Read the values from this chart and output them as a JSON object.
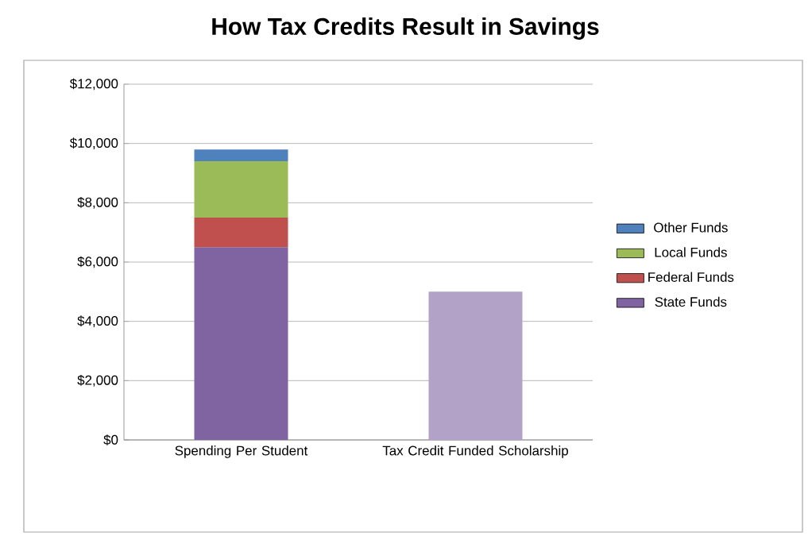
{
  "chart_data": {
    "type": "bar",
    "stacked": true,
    "title": "How Tax Credits Result in Savings",
    "categories": [
      "Spending Per Student",
      "Tax Credit Funded Scholarship"
    ],
    "series": [
      {
        "name": "State Funds",
        "color": "#8064a2",
        "values": [
          6500,
          null
        ]
      },
      {
        "name": "Federal Funds",
        "color": "#c0504d",
        "values": [
          1000,
          null
        ]
      },
      {
        "name": "Local Funds",
        "color": "#9bbb59",
        "values": [
          1900,
          null
        ]
      },
      {
        "name": "Other Funds",
        "color": "#4f81bd",
        "values": [
          400,
          null
        ]
      },
      {
        "color": "#b3a2c7",
        "values": [
          null,
          5000
        ]
      }
    ],
    "ylim": [
      0,
      12000
    ],
    "yticks": [
      {
        "value": 0,
        "label": "$0"
      },
      {
        "value": 2000,
        "label": "$2,000"
      },
      {
        "value": 4000,
        "label": "$4,000"
      },
      {
        "value": 6000,
        "label": "$6,000"
      },
      {
        "value": 8000,
        "label": "$8,000"
      },
      {
        "value": 10000,
        "label": "$10,000"
      },
      {
        "value": 12000,
        "label": "$12,000"
      }
    ],
    "grid": "y",
    "legend": "right"
  }
}
